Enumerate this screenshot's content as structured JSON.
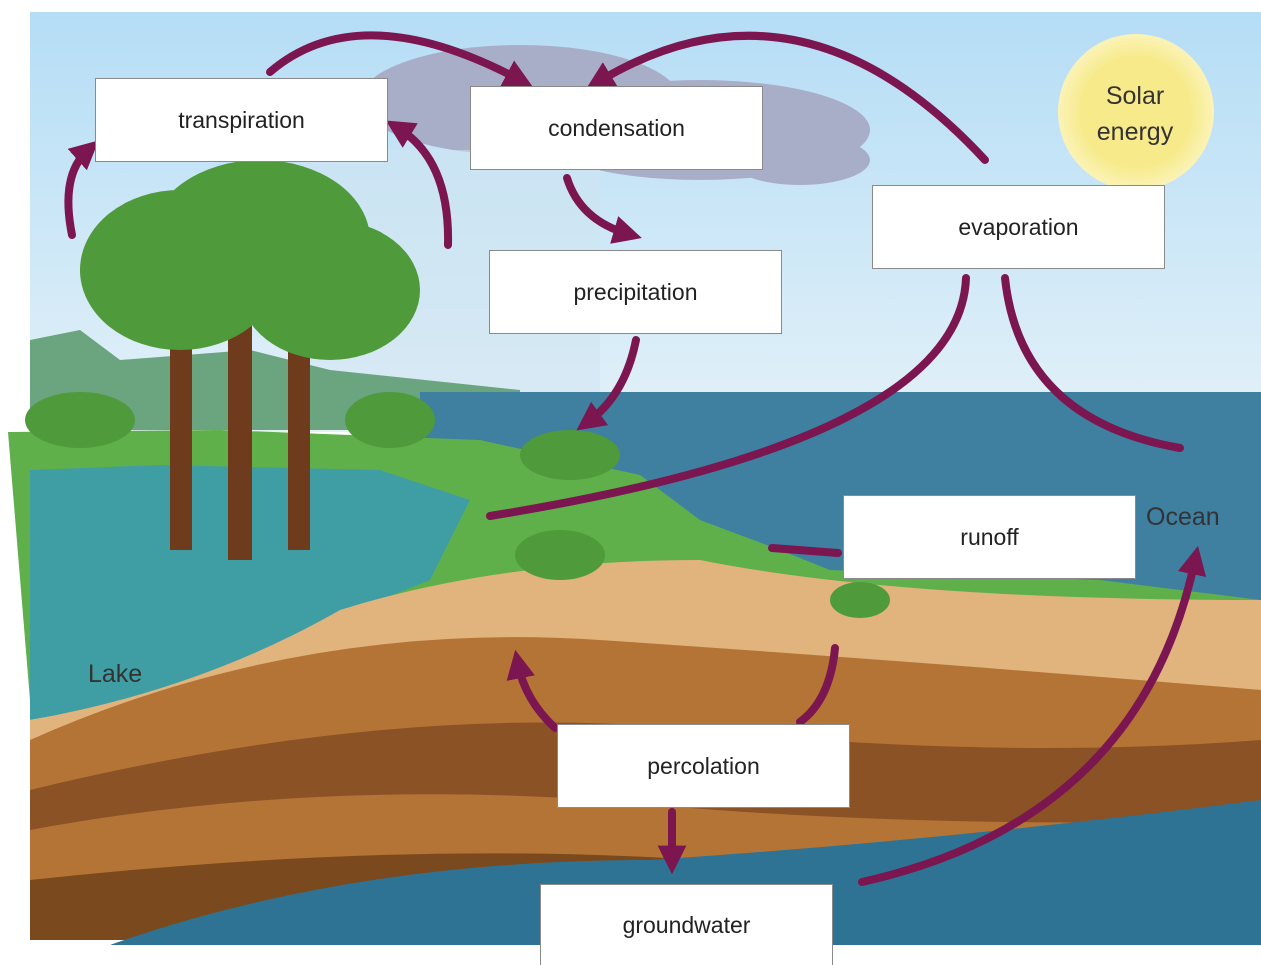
{
  "labels": [
    "transpiration",
    "condensation",
    "precipitation",
    "evaporation",
    "runoff",
    "percolation",
    "groundwater"
  ],
  "scene": {
    "sun": "Solar energy",
    "lake": "Lake",
    "ocean": "Ocean"
  }
}
